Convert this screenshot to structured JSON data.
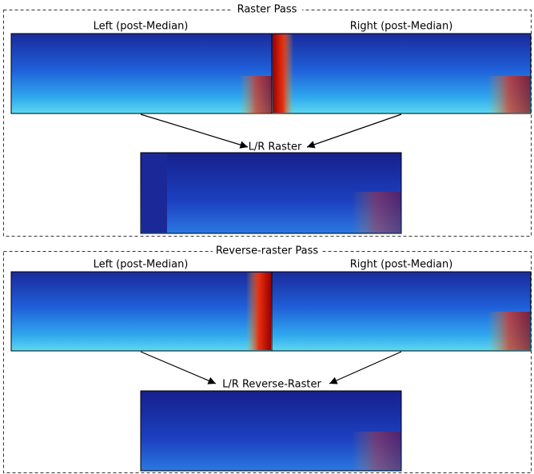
{
  "passes": [
    {
      "title": "Raster Pass",
      "left_label": "Left (post-Median)",
      "right_label": "Right (post-Median)",
      "result_label": "L/R Raster"
    },
    {
      "title": "Reverse-raster Pass",
      "left_label": "Left (post-Median)",
      "right_label": "Right (post-Median)",
      "result_label": "L/R Reverse-Raster"
    }
  ]
}
